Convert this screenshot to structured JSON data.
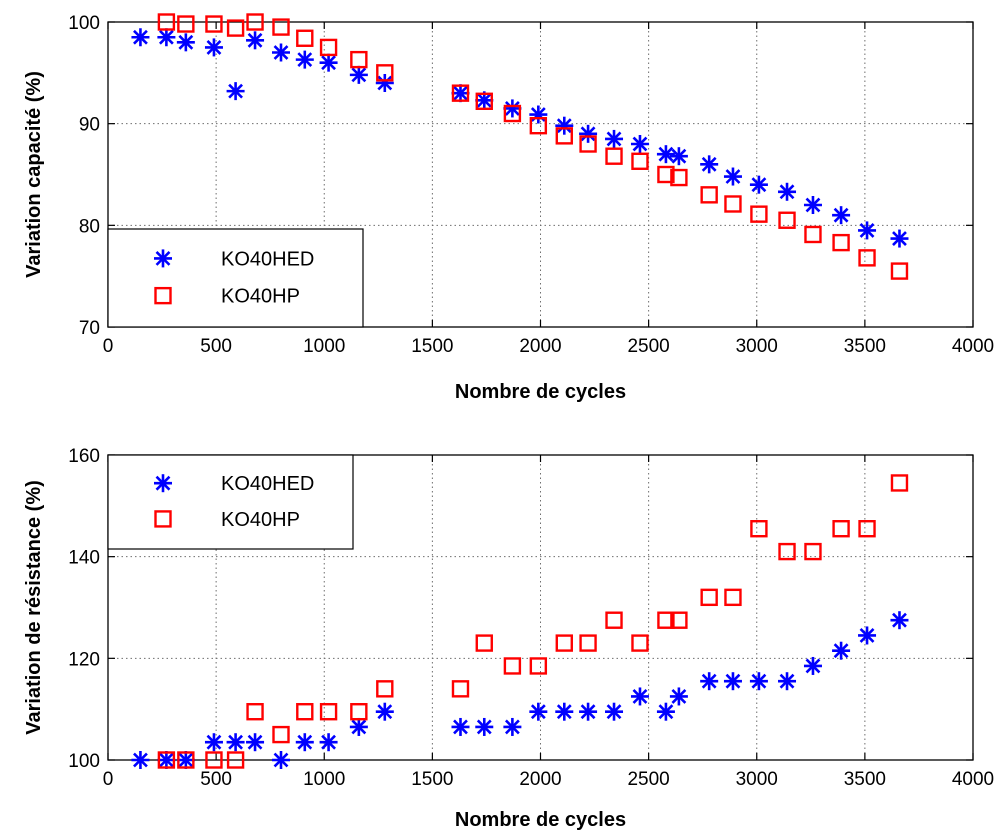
{
  "chart_data": [
    {
      "type": "scatter",
      "title": "",
      "xlabel": "Nombre de cycles",
      "ylabel": "Variation capacité (%)",
      "xlim": [
        0,
        4000
      ],
      "ylim": [
        70,
        100
      ],
      "xticks": [
        0,
        500,
        1000,
        1500,
        2000,
        2500,
        3000,
        3500,
        4000
      ],
      "yticks": [
        70,
        80,
        90,
        100
      ],
      "grid": true,
      "legend_position": "bottom-left",
      "series": [
        {
          "name": "KO40HED",
          "marker": "asterisk",
          "color": "#0000ff",
          "x": [
            150,
            270,
            360,
            490,
            590,
            680,
            800,
            910,
            1020,
            1160,
            1280,
            1630,
            1740,
            1870,
            1990,
            2110,
            2220,
            2340,
            2460,
            2580,
            2640,
            2780,
            2890,
            3010,
            3140,
            3260,
            3390,
            3510,
            3660
          ],
          "y": [
            98.5,
            98.5,
            98,
            97.5,
            93.2,
            98.2,
            97,
            96.3,
            96,
            94.8,
            94,
            93,
            92.3,
            91.5,
            90.9,
            89.8,
            89,
            88.5,
            88,
            87,
            86.8,
            86,
            84.8,
            84,
            83.3,
            82,
            81,
            79.5,
            78.7
          ]
        },
        {
          "name": "KO40HP",
          "marker": "square",
          "color": "#ff0000",
          "x": [
            270,
            360,
            490,
            590,
            680,
            800,
            910,
            1020,
            1160,
            1280,
            1630,
            1740,
            1870,
            1990,
            2110,
            2220,
            2340,
            2460,
            2580,
            2640,
            2780,
            2890,
            3010,
            3140,
            3260,
            3390,
            3510,
            3660
          ],
          "y": [
            100,
            99.8,
            99.8,
            99.4,
            100,
            99.5,
            98.4,
            97.5,
            96.3,
            95,
            93,
            92.2,
            91,
            89.8,
            88.8,
            88,
            86.8,
            86.3,
            85,
            84.7,
            83,
            82.1,
            81.1,
            80.5,
            79.1,
            78.3,
            76.8,
            75.5
          ]
        }
      ]
    },
    {
      "type": "scatter",
      "title": "",
      "xlabel": "Nombre de cycles",
      "ylabel": "Variation de résistance (%)",
      "xlim": [
        0,
        4000
      ],
      "ylim": [
        100,
        160
      ],
      "xticks": [
        0,
        500,
        1000,
        1500,
        2000,
        2500,
        3000,
        3500,
        4000
      ],
      "yticks": [
        100,
        120,
        140,
        160
      ],
      "grid": true,
      "legend_position": "top-left",
      "series": [
        {
          "name": "KO40HED",
          "marker": "asterisk",
          "color": "#0000ff",
          "x": [
            150,
            270,
            360,
            490,
            590,
            680,
            800,
            910,
            1020,
            1160,
            1280,
            1630,
            1740,
            1870,
            1990,
            2110,
            2220,
            2340,
            2460,
            2580,
            2640,
            2780,
            2890,
            3010,
            3140,
            3260,
            3390,
            3510,
            3660
          ],
          "y": [
            100,
            100,
            100,
            103.5,
            103.5,
            103.5,
            100,
            103.5,
            103.5,
            106.5,
            109.5,
            106.5,
            106.5,
            106.5,
            109.5,
            109.5,
            109.5,
            109.5,
            112.5,
            109.5,
            112.5,
            115.5,
            115.5,
            115.5,
            115.5,
            118.5,
            121.5,
            124.5,
            127.5
          ]
        },
        {
          "name": "KO40HP",
          "marker": "square",
          "color": "#ff0000",
          "x": [
            270,
            360,
            490,
            590,
            680,
            800,
            910,
            1020,
            1160,
            1280,
            1630,
            1740,
            1870,
            1990,
            2110,
            2220,
            2340,
            2460,
            2580,
            2640,
            2780,
            2890,
            3010,
            3140,
            3260,
            3390,
            3510,
            3660
          ],
          "y": [
            100,
            100,
            100,
            100,
            109.5,
            105,
            109.5,
            109.5,
            109.5,
            114,
            114,
            123,
            118.5,
            118.5,
            123,
            123,
            127.5,
            123,
            127.5,
            127.5,
            132,
            132,
            145.5,
            141,
            141,
            145.5,
            145.5,
            154.5
          ]
        }
      ]
    }
  ]
}
